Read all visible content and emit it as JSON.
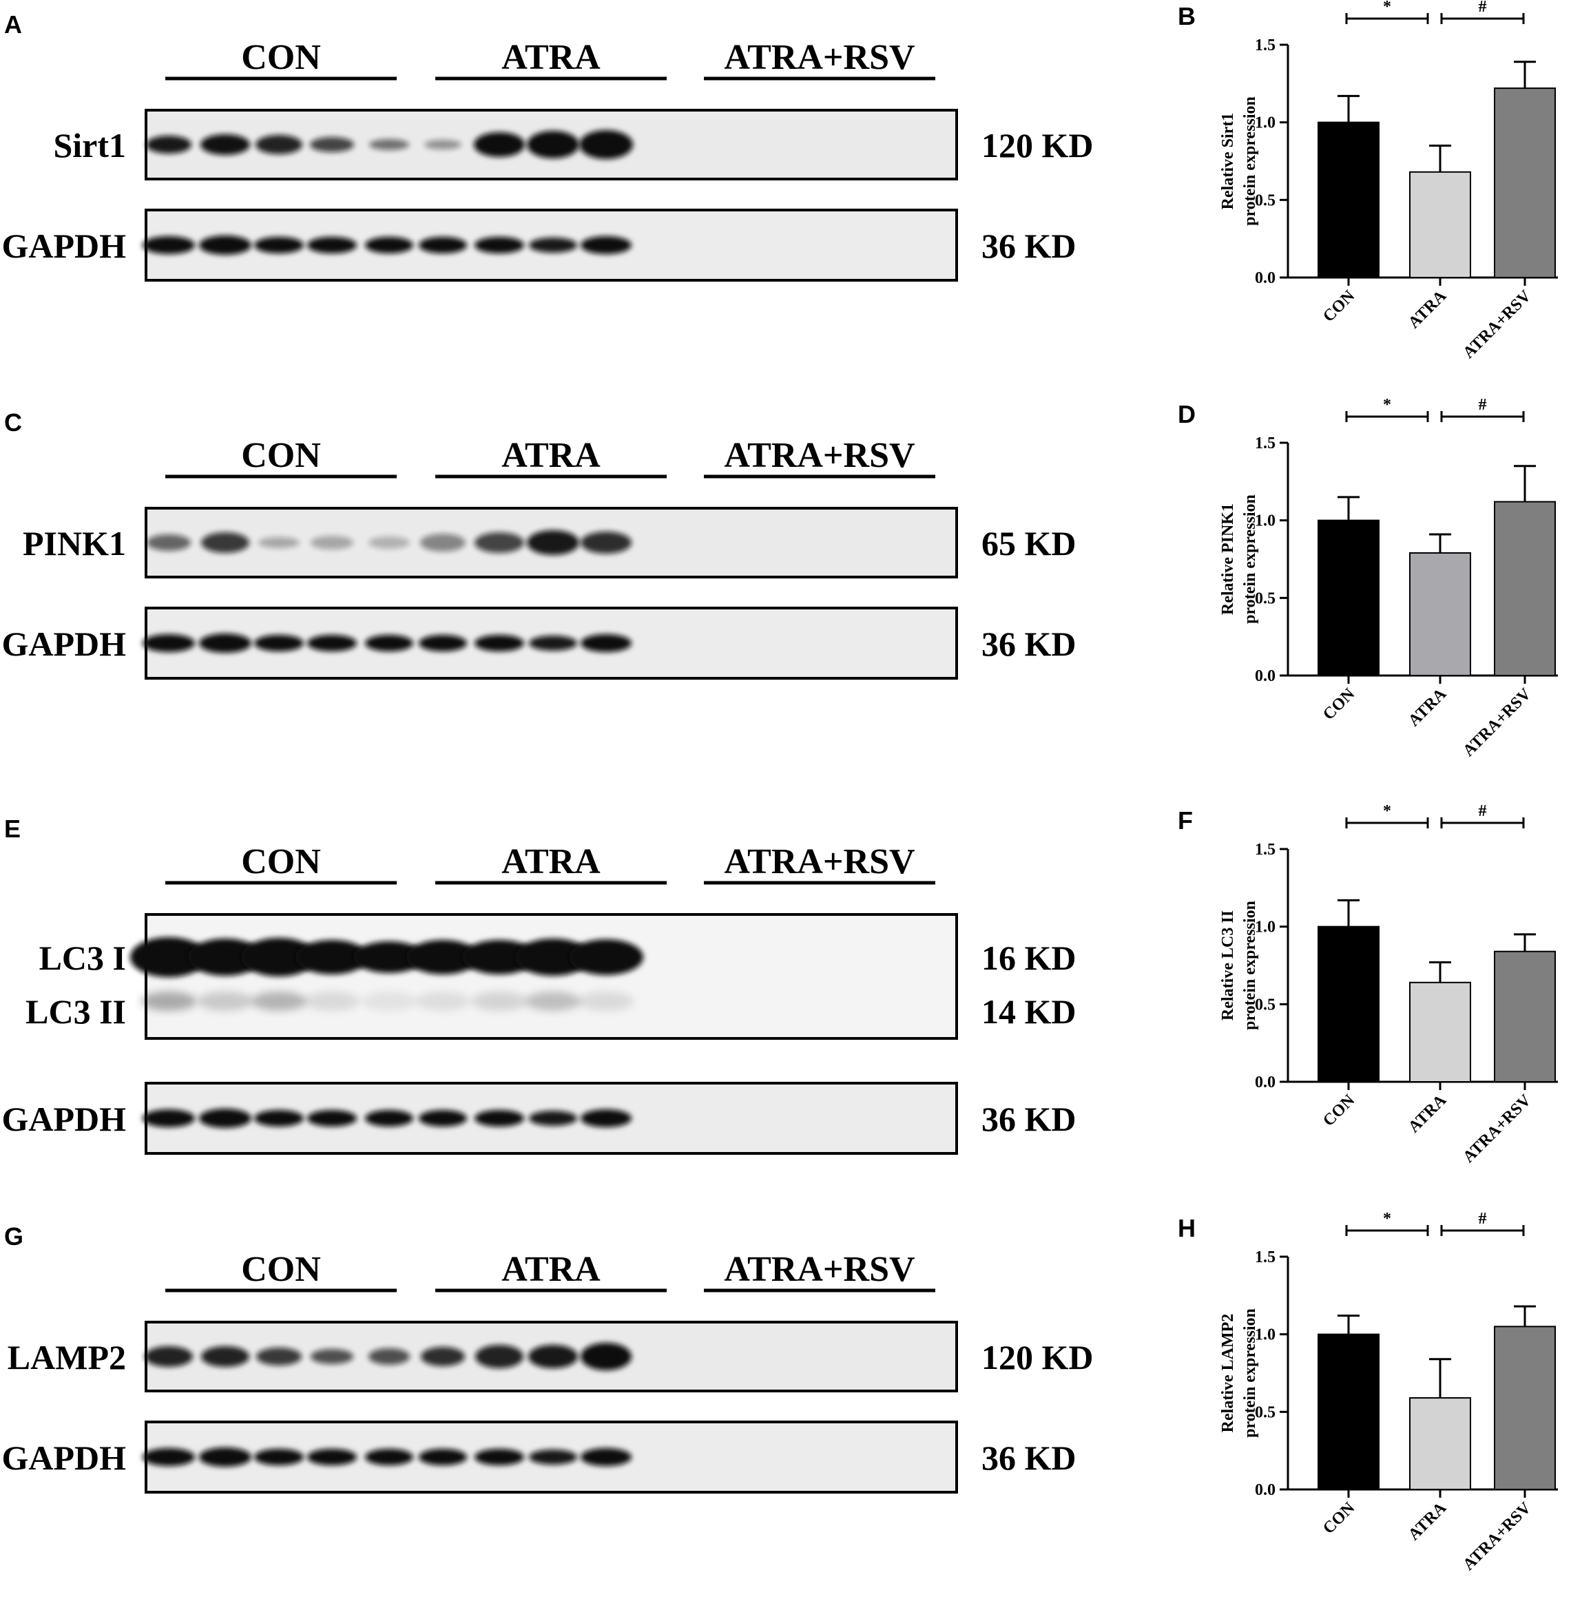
{
  "rows": [
    {
      "blot_letter": "A",
      "chart_letter": "B",
      "groups": [
        "CON",
        "ATRA",
        "ATRA+RSV"
      ],
      "target": {
        "label": "Sirt1",
        "size": "120 KD"
      },
      "loading": {
        "label": "GAPDH",
        "size": "36 KD"
      }
    },
    {
      "blot_letter": "C",
      "chart_letter": "D",
      "groups": [
        "CON",
        "ATRA",
        "ATRA+RSV"
      ],
      "target": {
        "label": "PINK1",
        "size": "65 KD"
      },
      "loading": {
        "label": "GAPDH",
        "size": "36 KD"
      }
    },
    {
      "blot_letter": "E",
      "chart_letter": "F",
      "groups": [
        "CON",
        "ATRA",
        "ATRA+RSV"
      ],
      "target": {
        "label": "LC3 I",
        "size": "16 KD",
        "label2": "LC3 II",
        "size2": "14 KD"
      },
      "loading": {
        "label": "GAPDH",
        "size": "36 KD"
      }
    },
    {
      "blot_letter": "G",
      "chart_letter": "H",
      "groups": [
        "CON",
        "ATRA",
        "ATRA+RSV"
      ],
      "target": {
        "label": "LAMP2",
        "size": "120 KD"
      },
      "loading": {
        "label": "GAPDH",
        "size": "36 KD"
      }
    }
  ],
  "chart_data": [
    {
      "type": "bar",
      "categories": [
        "CON",
        "ATRA",
        "ATRA+RSV"
      ],
      "values": [
        1.0,
        0.68,
        1.22
      ],
      "errors": [
        0.17,
        0.17,
        0.17
      ],
      "ylabel_line1": "Relative Sirt1",
      "ylabel_line2": "protein expression",
      "ylim": [
        0,
        1.5
      ],
      "yticks": [
        "0.0",
        "0.5",
        "1.0",
        "1.5"
      ],
      "significance": [
        {
          "from": 0,
          "to": 1,
          "mark": "*"
        },
        {
          "from": 1,
          "to": 2,
          "mark": "#"
        }
      ],
      "bar_colors": [
        "#000000",
        "#d3d3d3",
        "#7f7f7f"
      ]
    },
    {
      "type": "bar",
      "categories": [
        "CON",
        "ATRA",
        "ATRA+RSV"
      ],
      "values": [
        1.0,
        0.79,
        1.12
      ],
      "errors": [
        0.15,
        0.12,
        0.23
      ],
      "ylabel_line1": "Relative PINK1",
      "ylabel_line2": "protein expression",
      "ylim": [
        0,
        1.5
      ],
      "yticks": [
        "0.0",
        "0.5",
        "1.0",
        "1.5"
      ],
      "significance": [
        {
          "from": 0,
          "to": 1,
          "mark": "*"
        },
        {
          "from": 1,
          "to": 2,
          "mark": "#"
        }
      ],
      "bar_colors": [
        "#000000",
        "#a8a8ad",
        "#7f7f7f"
      ]
    },
    {
      "type": "bar",
      "categories": [
        "CON",
        "ATRA",
        "ATRA+RSV"
      ],
      "values": [
        1.0,
        0.64,
        0.84
      ],
      "errors": [
        0.17,
        0.13,
        0.11
      ],
      "ylabel_line1": "Relative LC3 II",
      "ylabel_line2": "protein expression",
      "ylim": [
        0,
        1.5
      ],
      "yticks": [
        "0.0",
        "0.5",
        "1.0",
        "1.5"
      ],
      "significance": [
        {
          "from": 0,
          "to": 1,
          "mark": "*"
        },
        {
          "from": 1,
          "to": 2,
          "mark": "#"
        }
      ],
      "bar_colors": [
        "#000000",
        "#d3d3d3",
        "#7f7f7f"
      ]
    },
    {
      "type": "bar",
      "categories": [
        "CON",
        "ATRA",
        "ATRA+RSV"
      ],
      "values": [
        1.0,
        0.59,
        1.05
      ],
      "errors": [
        0.12,
        0.25,
        0.13
      ],
      "ylabel_line1": "Relative LAMP2",
      "ylabel_line2": "protein expression",
      "ylim": [
        0,
        1.5
      ],
      "yticks": [
        "0.0",
        "0.5",
        "1.0",
        "1.5"
      ],
      "significance": [
        {
          "from": 0,
          "to": 1,
          "mark": "*"
        },
        {
          "from": 1,
          "to": 2,
          "mark": "#"
        }
      ],
      "bar_colors": [
        "#000000",
        "#d3d3d3",
        "#7f7f7f"
      ]
    }
  ]
}
